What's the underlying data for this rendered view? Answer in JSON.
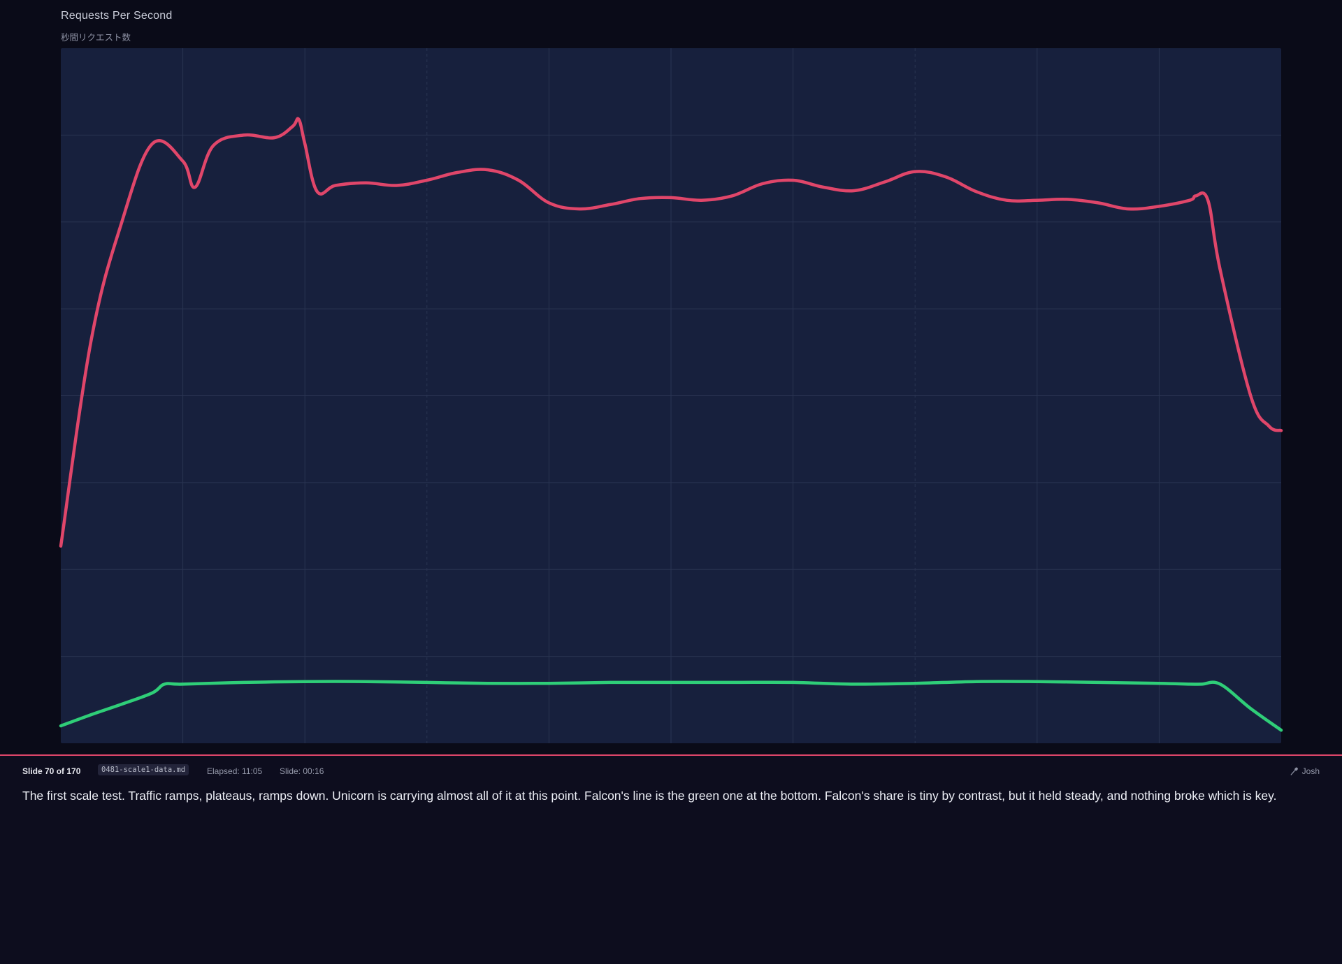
{
  "slide": {
    "title": "Requests Per Second",
    "subtitle": "秒間リクエスト数"
  },
  "colors": {
    "background": "#0a0b18",
    "plot_background": "#17203d",
    "grid": "#2a3452",
    "unicorn": "#e0466a",
    "falcon": "#2fce78",
    "accent": "#e0466a"
  },
  "chart_data": {
    "type": "line",
    "title": "Requests Per Second",
    "subtitle": "秒間リクエスト数",
    "xlabel": "",
    "ylabel": "",
    "xlim": [
      0,
      10
    ],
    "ylim": [
      0,
      8
    ],
    "grid": true,
    "dashed_gridlines_at_x": [
      3,
      7
    ],
    "series": [
      {
        "key": "unicorn",
        "color": "#e0466a",
        "x": [
          0,
          0.25,
          0.5,
          0.75,
          1.0,
          1.1,
          1.25,
          1.5,
          1.75,
          1.9,
          1.95,
          2.0,
          2.1,
          2.25,
          2.5,
          2.75,
          3.0,
          3.25,
          3.5,
          3.75,
          4.0,
          4.25,
          4.5,
          4.75,
          5.0,
          5.25,
          5.5,
          5.75,
          6.0,
          6.25,
          6.5,
          6.75,
          7.0,
          7.25,
          7.5,
          7.75,
          8.0,
          8.25,
          8.5,
          8.75,
          9.0,
          9.25,
          9.3,
          9.4,
          9.5,
          9.75,
          9.9,
          10.0
        ],
        "values": [
          2.27,
          4.65,
          6.0,
          6.9,
          6.7,
          6.4,
          6.88,
          7.0,
          6.97,
          7.1,
          7.18,
          6.9,
          6.35,
          6.42,
          6.45,
          6.42,
          6.48,
          6.57,
          6.6,
          6.48,
          6.22,
          6.15,
          6.2,
          6.27,
          6.28,
          6.25,
          6.3,
          6.44,
          6.48,
          6.4,
          6.36,
          6.46,
          6.58,
          6.52,
          6.35,
          6.25,
          6.25,
          6.26,
          6.22,
          6.15,
          6.18,
          6.25,
          6.3,
          6.25,
          5.45,
          4.0,
          3.65,
          3.6
        ]
      },
      {
        "key": "falcon",
        "color": "#2fce78",
        "x": [
          0,
          0.25,
          0.5,
          0.75,
          0.85,
          1.0,
          1.5,
          2.0,
          2.5,
          3.0,
          3.5,
          4.0,
          4.5,
          5.0,
          5.5,
          6.0,
          6.5,
          7.0,
          7.5,
          8.0,
          8.5,
          9.0,
          9.25,
          9.35,
          9.5,
          9.75,
          10.0
        ],
        "values": [
          0.2,
          0.33,
          0.45,
          0.58,
          0.68,
          0.68,
          0.7,
          0.71,
          0.71,
          0.7,
          0.69,
          0.69,
          0.7,
          0.7,
          0.7,
          0.7,
          0.68,
          0.69,
          0.71,
          0.71,
          0.7,
          0.69,
          0.68,
          0.68,
          0.68,
          0.4,
          0.15
        ]
      }
    ]
  },
  "presenter_bar": {
    "slide_counter": "Slide 70 of 170",
    "file_name": "0481-scale1-data.md",
    "elapsed": "Elapsed: 11:05",
    "slide_time": "Slide: 00:16",
    "presenter_name": "Josh",
    "presenter_icon": "mic-icon"
  },
  "notes": {
    "text": "The first scale test. Traffic ramps, plateaus, ramps down. Unicorn is carrying almost all of it at this point. Falcon's line is the green one at the bottom. Falcon's share is tiny by contrast, but it held steady, and nothing broke which is key."
  }
}
